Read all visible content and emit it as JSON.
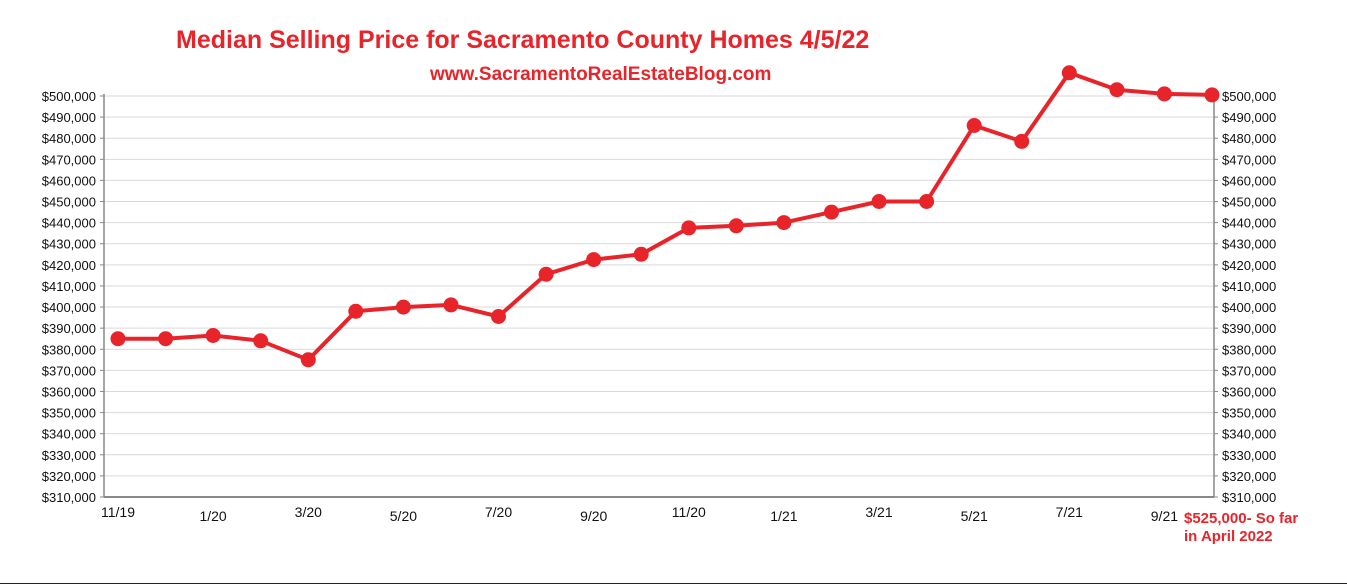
{
  "header": {
    "title": "Median Selling Price for Sacramento County Homes 4/5/22",
    "subtitle": "www.SacramentoRealEstateBlog.com"
  },
  "note": {
    "line1": "$525,000- So far",
    "line2": "in  April 2022"
  },
  "colors": {
    "accent": "#e8242b",
    "grid": "#d9d9d9",
    "axis": "#888888",
    "text": "#111111"
  },
  "chart_data": {
    "type": "line",
    "title": "Median Selling Price for Sacramento County Homes 4/5/22",
    "xlabel": "",
    "ylabel": "",
    "ylim": [
      310000,
      500000
    ],
    "grid": true,
    "y_ticks": [
      310000,
      320000,
      330000,
      340000,
      350000,
      360000,
      370000,
      380000,
      390000,
      400000,
      410000,
      420000,
      430000,
      440000,
      450000,
      460000,
      470000,
      480000,
      490000,
      500000
    ],
    "y_tick_labels": [
      "$310,000",
      "$320,000",
      "$330,000",
      "$340,000",
      "$350,000",
      "$360,000",
      "$370,000",
      "$380,000",
      "$390,000",
      "$400,000",
      "$410,000",
      "$420,000",
      "$430,000",
      "$440,000",
      "$450,000",
      "$460,000",
      "$470,000",
      "$480,000",
      "$490,000",
      "$500,000"
    ],
    "x_tick_labels": [
      "11/19",
      "1/20",
      "3/20",
      "5/20",
      "7/20",
      "9/20",
      "11/20",
      "1/21",
      "3/21",
      "5/21",
      "7/21",
      "9/21"
    ],
    "series": [
      {
        "values": [
          385000,
          385000,
          386500,
          384000,
          375000,
          398000,
          400000,
          401000,
          395500,
          415500,
          422500,
          425000,
          437500,
          438500,
          440000,
          445000,
          450000,
          450000,
          486000,
          478500,
          511000,
          503000,
          501000,
          500500
        ]
      }
    ]
  }
}
